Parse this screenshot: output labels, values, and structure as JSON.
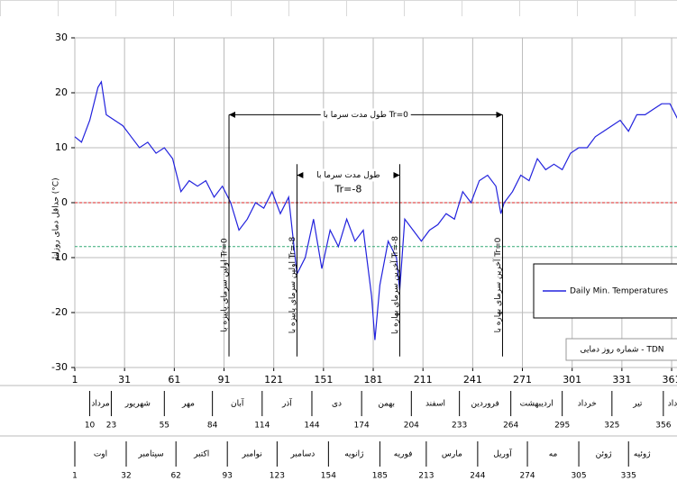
{
  "chart_data": {
    "type": "line",
    "y_label": "حداقل دمای روزانه (°C)",
    "x_label": "شماره روز دمایی - TDN",
    "x": [
      1,
      5,
      10,
      15,
      17,
      20,
      25,
      30,
      35,
      40,
      45,
      50,
      55,
      60,
      65,
      70,
      75,
      80,
      85,
      90,
      95,
      100,
      105,
      110,
      115,
      120,
      125,
      130,
      135,
      140,
      145,
      150,
      155,
      160,
      165,
      170,
      175,
      180,
      182,
      185,
      190,
      195,
      197,
      200,
      205,
      210,
      215,
      220,
      225,
      230,
      235,
      240,
      245,
      250,
      255,
      258,
      260,
      265,
      270,
      275,
      280,
      285,
      290,
      295,
      300,
      305,
      310,
      315,
      320,
      325,
      330,
      335,
      340,
      345,
      350,
      355,
      360,
      365
    ],
    "series": [
      {
        "name": "Daily Min. Temperatures",
        "color": "#2222dd",
        "values": [
          12,
          11,
          15,
          21,
          22,
          16,
          15,
          14,
          12,
          10,
          11,
          9,
          10,
          8,
          2,
          4,
          3,
          4,
          1,
          3,
          0,
          -5,
          -3,
          0,
          -1,
          2,
          -2,
          1,
          -13,
          -10,
          -3,
          -12,
          -5,
          -8,
          -3,
          -7,
          -5,
          -17,
          -25,
          -15,
          -7,
          -10,
          -16,
          -3,
          -5,
          -7,
          -5,
          -4,
          -2,
          -3,
          2,
          0,
          4,
          5,
          3,
          -2,
          0,
          2,
          5,
          4,
          8,
          6,
          7,
          6,
          9,
          10,
          10,
          12,
          13,
          14,
          15,
          13,
          16,
          16,
          17,
          18,
          18,
          15
        ]
      }
    ],
    "xlim": [
      1,
      366
    ],
    "ylim": [
      -30,
      30
    ],
    "xticks": [
      1,
      31,
      61,
      91,
      121,
      151,
      181,
      211,
      241,
      271,
      301,
      331,
      361
    ],
    "yticks": [
      -30,
      -20,
      -10,
      0,
      10,
      20,
      30
    ],
    "grid": true,
    "ref_lines": [
      {
        "y": 0,
        "color": "#dd2222"
      },
      {
        "y": -8,
        "color": "#33aa77"
      }
    ],
    "spans": [
      {
        "from": 94,
        "to": 259,
        "y": 16,
        "label": "طول مدت سرما با Tr=0"
      },
      {
        "from": 135,
        "to": 197,
        "y": 5,
        "label": "طول مدت سرما با",
        "label2": "Tr=-8"
      }
    ],
    "markers": [
      {
        "x": 94,
        "top": 16,
        "label": "اولین سرمای پاییزه با Tr=0"
      },
      {
        "x": 135,
        "top": 7,
        "label": "اولین سرمای پاییزه با Tr=-8"
      },
      {
        "x": 197,
        "top": 7,
        "label": "آخرین سرمای بهاره با Tr=-8"
      },
      {
        "x": 259,
        "top": 16,
        "label": "آخرین سرمای بهاره با Tr=0"
      }
    ],
    "calendar": {
      "persian": {
        "days": [
          10,
          23,
          55,
          84,
          114,
          144,
          174,
          204,
          233,
          264,
          295,
          325,
          356
        ],
        "names": [
          "مرداد",
          "شهریور",
          "مهر",
          "آبان",
          "آذر",
          "دی",
          "بهمن",
          "اسفند",
          "فروردین",
          "اردیبهشت",
          "خرداد",
          "تیر",
          "مرداد"
        ]
      },
      "gregorian": {
        "days": [
          1,
          32,
          62,
          93,
          123,
          154,
          185,
          213,
          244,
          274,
          305,
          335
        ],
        "names": [
          "اوت",
          "سپتامبر",
          "اکتبر",
          "نوامبر",
          "دسامبر",
          "ژانویه",
          "فوریه",
          "مارس",
          "آوریل",
          "مه",
          "ژوئن",
          "ژوئیه"
        ]
      }
    }
  }
}
